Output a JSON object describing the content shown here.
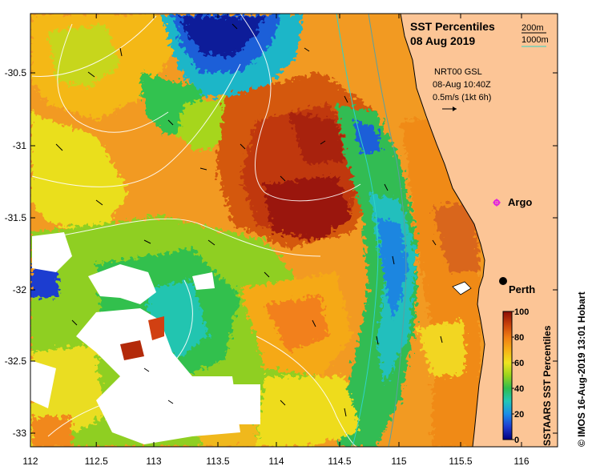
{
  "map": {
    "title": "SST Percentiles",
    "date": "08 Aug 2019",
    "legend_lines": [
      {
        "label": "200m",
        "color": "#000000"
      },
      {
        "label": "1000m",
        "color": "#2fd3c8"
      }
    ],
    "current_source": "NRT00 GSL",
    "current_time": "08-Aug 10:40Z",
    "current_scale": "0.5m/s (1kt 6h)",
    "x_ticks": [
      "112",
      "112.5",
      "113",
      "113.5",
      "114",
      "114.5",
      "115",
      "115.5",
      "116"
    ],
    "y_ticks": [
      "-30.5",
      "-31",
      "-31.5",
      "-32",
      "-32.5",
      "-33"
    ],
    "places": [
      {
        "name": "Argo",
        "lon": 115.87,
        "lat": -31.45,
        "marker": "magenta-star"
      },
      {
        "name": "Perth",
        "lon": 115.86,
        "lat": -31.95,
        "marker": "black-dot"
      }
    ],
    "colorbar": {
      "label": "SSTAARS SST Percentiles",
      "ticks": [
        "0",
        "20",
        "40",
        "60",
        "80",
        "100"
      ],
      "colors": [
        "#000080",
        "#1e3cd0",
        "#1c8ee8",
        "#23c7b8",
        "#2ebd4e",
        "#9ad41e",
        "#efe51f",
        "#f7b016",
        "#f07c13",
        "#c8400a",
        "#8a0d05"
      ]
    },
    "credit": "© IMOS 16-Aug-2019 13:01 Hobart",
    "colors": {
      "land": "#fcc596",
      "bathy_200m": "#000000",
      "bathy_1000m": "#2fd3c8",
      "sst_contour": "#ffffff"
    }
  }
}
